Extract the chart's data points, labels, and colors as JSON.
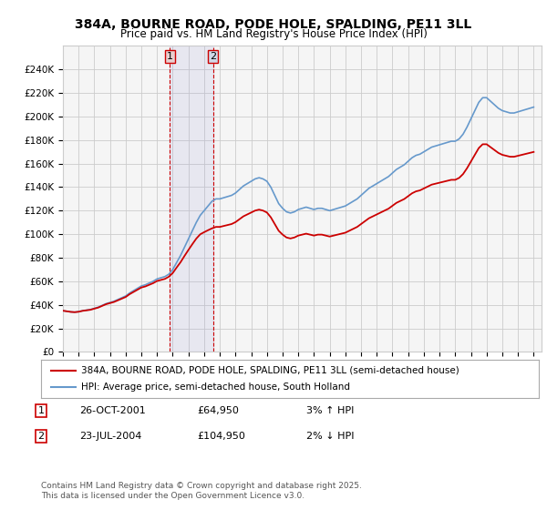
{
  "title": "384A, BOURNE ROAD, PODE HOLE, SPALDING, PE11 3LL",
  "subtitle": "Price paid vs. HM Land Registry's House Price Index (HPI)",
  "ylabel": "",
  "xlabel": "",
  "ylim": [
    0,
    260000
  ],
  "yticks": [
    0,
    20000,
    40000,
    60000,
    80000,
    100000,
    120000,
    140000,
    160000,
    180000,
    200000,
    220000,
    240000
  ],
  "ytick_labels": [
    "£0",
    "£20K",
    "£40K",
    "£60K",
    "£80K",
    "£100K",
    "£120K",
    "£140K",
    "£160K",
    "£180K",
    "£200K",
    "£220K",
    "£240K"
  ],
  "xlim_start": 1995.0,
  "xlim_end": 2025.5,
  "xtick_years": [
    1995,
    1996,
    1997,
    1998,
    1999,
    2000,
    2001,
    2002,
    2003,
    2004,
    2005,
    2006,
    2007,
    2008,
    2009,
    2010,
    2011,
    2012,
    2013,
    2014,
    2015,
    2016,
    2017,
    2018,
    2019,
    2020,
    2021,
    2022,
    2023,
    2024,
    2025
  ],
  "hpi_color": "#6699cc",
  "price_color": "#cc0000",
  "marker1_x": 2001.82,
  "marker1_y": 64950,
  "marker2_x": 2004.56,
  "marker2_y": 104950,
  "marker_box_color": "#cc0000",
  "marker_fill": "#e8d0d0",
  "legend_line1": "384A, BOURNE ROAD, PODE HOLE, SPALDING, PE11 3LL (semi-detached house)",
  "legend_line2": "HPI: Average price, semi-detached house, South Holland",
  "annotation1_num": "1",
  "annotation1_date": "26-OCT-2001",
  "annotation1_price": "£64,950",
  "annotation1_hpi": "3% ↑ HPI",
  "annotation2_num": "2",
  "annotation2_date": "23-JUL-2004",
  "annotation2_price": "£104,950",
  "annotation2_hpi": "2% ↓ HPI",
  "footer": "Contains HM Land Registry data © Crown copyright and database right 2025.\nThis data is licensed under the Open Government Licence v3.0.",
  "bg_color": "#ffffff",
  "plot_bg_color": "#f5f5f5",
  "hpi_data_x": [
    1995.0,
    1995.25,
    1995.5,
    1995.75,
    1996.0,
    1996.25,
    1996.5,
    1996.75,
    1997.0,
    1997.25,
    1997.5,
    1997.75,
    1998.0,
    1998.25,
    1998.5,
    1998.75,
    1999.0,
    1999.25,
    1999.5,
    1999.75,
    2000.0,
    2000.25,
    2000.5,
    2000.75,
    2001.0,
    2001.25,
    2001.5,
    2001.75,
    2002.0,
    2002.25,
    2002.5,
    2002.75,
    2003.0,
    2003.25,
    2003.5,
    2003.75,
    2004.0,
    2004.25,
    2004.5,
    2004.75,
    2005.0,
    2005.25,
    2005.5,
    2005.75,
    2006.0,
    2006.25,
    2006.5,
    2006.75,
    2007.0,
    2007.25,
    2007.5,
    2007.75,
    2008.0,
    2008.25,
    2008.5,
    2008.75,
    2009.0,
    2009.25,
    2009.5,
    2009.75,
    2010.0,
    2010.25,
    2010.5,
    2010.75,
    2011.0,
    2011.25,
    2011.5,
    2011.75,
    2012.0,
    2012.25,
    2012.5,
    2012.75,
    2013.0,
    2013.25,
    2013.5,
    2013.75,
    2014.0,
    2014.25,
    2014.5,
    2014.75,
    2015.0,
    2015.25,
    2015.5,
    2015.75,
    2016.0,
    2016.25,
    2016.5,
    2016.75,
    2017.0,
    2017.25,
    2017.5,
    2017.75,
    2018.0,
    2018.25,
    2018.5,
    2018.75,
    2019.0,
    2019.25,
    2019.5,
    2019.75,
    2020.0,
    2020.25,
    2020.5,
    2020.75,
    2021.0,
    2021.25,
    2021.5,
    2021.75,
    2022.0,
    2022.25,
    2022.5,
    2022.75,
    2023.0,
    2023.25,
    2023.5,
    2023.75,
    2024.0,
    2024.25,
    2024.5,
    2024.75,
    2025.0
  ],
  "hpi_data_y": [
    35000,
    34500,
    34000,
    33800,
    34200,
    35000,
    35500,
    36000,
    37000,
    38000,
    39500,
    41000,
    42000,
    43000,
    44500,
    46000,
    47500,
    50000,
    52000,
    54000,
    56000,
    57000,
    58500,
    60000,
    62000,
    63000,
    64000,
    66000,
    70000,
    76000,
    82000,
    89000,
    96000,
    103000,
    110000,
    116000,
    120000,
    124000,
    128000,
    130000,
    130000,
    131000,
    132000,
    133000,
    135000,
    138000,
    141000,
    143000,
    145000,
    147000,
    148000,
    147000,
    145000,
    140000,
    133000,
    126000,
    122000,
    119000,
    118000,
    119000,
    121000,
    122000,
    123000,
    122000,
    121000,
    122000,
    122000,
    121000,
    120000,
    121000,
    122000,
    123000,
    124000,
    126000,
    128000,
    130000,
    133000,
    136000,
    139000,
    141000,
    143000,
    145000,
    147000,
    149000,
    152000,
    155000,
    157000,
    159000,
    162000,
    165000,
    167000,
    168000,
    170000,
    172000,
    174000,
    175000,
    176000,
    177000,
    178000,
    179000,
    179000,
    181000,
    185000,
    191000,
    198000,
    205000,
    212000,
    216000,
    216000,
    213000,
    210000,
    207000,
    205000,
    204000,
    203000,
    203000,
    204000,
    205000,
    206000,
    207000,
    208000
  ],
  "price_data_x": [
    1995.5,
    2001.82,
    2004.56
  ],
  "price_data_y": [
    34000,
    64950,
    104950
  ]
}
